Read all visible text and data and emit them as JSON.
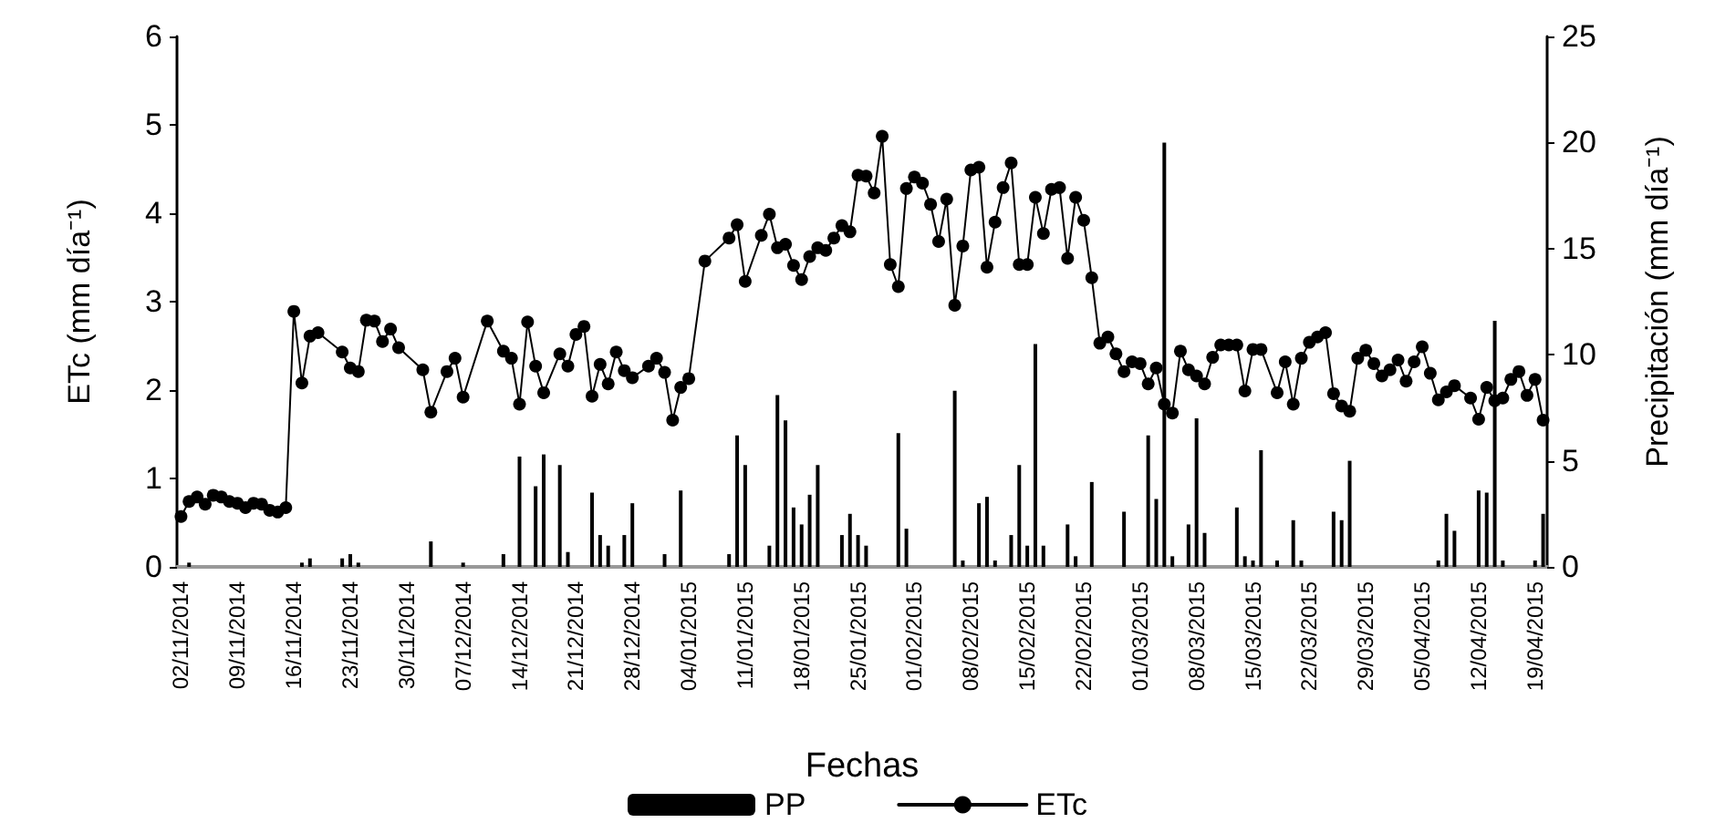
{
  "chart_data": {
    "type": "bar",
    "xlabel": "Fechas",
    "ylabel": "ETc (mm día⁻¹)",
    "y2label": "Precipitación (mm día⁻¹)",
    "categories": [
      "02/11/2014",
      null,
      null,
      null,
      null,
      null,
      null,
      "09/11/2014",
      null,
      null,
      null,
      null,
      null,
      null,
      "16/11/2014",
      null,
      null,
      null,
      null,
      null,
      null,
      "23/11/2014",
      null,
      null,
      null,
      null,
      null,
      null,
      "30/11/2014",
      null,
      null,
      null,
      null,
      null,
      null,
      "07/12/2014",
      null,
      null,
      null,
      null,
      null,
      null,
      "14/12/2014",
      null,
      null,
      null,
      null,
      null,
      null,
      "21/12/2014",
      null,
      null,
      null,
      null,
      null,
      null,
      "28/12/2014",
      null,
      null,
      null,
      null,
      null,
      null,
      "04/01/2015",
      null,
      null,
      null,
      null,
      null,
      null,
      "11/01/2015",
      null,
      null,
      null,
      null,
      null,
      null,
      "18/01/2015",
      null,
      null,
      null,
      null,
      null,
      null,
      "25/01/2015",
      null,
      null,
      null,
      null,
      null,
      null,
      "01/02/2015",
      null,
      null,
      null,
      null,
      null,
      null,
      "08/02/2015",
      null,
      null,
      null,
      null,
      null,
      null,
      "15/02/2015",
      null,
      null,
      null,
      null,
      null,
      null,
      "22/02/2015",
      null,
      null,
      null,
      null,
      null,
      null,
      "01/03/2015",
      null,
      null,
      null,
      null,
      null,
      null,
      "08/03/2015",
      null,
      null,
      null,
      null,
      null,
      null,
      "15/03/2015",
      null,
      null,
      null,
      null,
      null,
      null,
      "22/03/2015",
      null,
      null,
      null,
      null,
      null,
      null,
      "29/03/2015",
      null,
      null,
      null,
      null,
      null,
      null,
      "05/04/2015",
      null,
      null,
      null,
      null,
      null,
      null,
      "12/04/2015",
      null,
      null,
      null,
      null,
      null,
      null,
      "19/04/2015",
      null
    ],
    "series": [
      {
        "name": "PP",
        "axis": "y2",
        "color": "#000000",
        "values": [
          0,
          0.2,
          0,
          0,
          0,
          0,
          0,
          0,
          0,
          0,
          0,
          0,
          0,
          0,
          0,
          0.2,
          0.4,
          0,
          0,
          0,
          0.4,
          0.6,
          0.2,
          0,
          0,
          0,
          0,
          0,
          0,
          0,
          0,
          1.2,
          0,
          0,
          0,
          0.2,
          0,
          0,
          0,
          0,
          0.6,
          0,
          5.2,
          0,
          3.8,
          5.3,
          0,
          4.8,
          0.7,
          0,
          0,
          3.5,
          1.5,
          1.0,
          0,
          1.5,
          3.0,
          0,
          0,
          0,
          0.6,
          0,
          3.6,
          0,
          0,
          0,
          0,
          0,
          0.6,
          6.2,
          4.8,
          0,
          0,
          1.0,
          8.1,
          6.9,
          2.8,
          2.0,
          3.4,
          4.8,
          0,
          0,
          1.5,
          2.5,
          1.5,
          1.0,
          0,
          0,
          0,
          6.3,
          1.8,
          0,
          0,
          0,
          0,
          0,
          8.3,
          0.3,
          0,
          3.0,
          3.3,
          0.3,
          0,
          1.5,
          4.8,
          1.0,
          10.5,
          1.0,
          0,
          0,
          2.0,
          0.5,
          0,
          4.0,
          0,
          0,
          0,
          2.6,
          0,
          0,
          6.2,
          3.2,
          20.0,
          0.5,
          0,
          2.0,
          7.0,
          1.6,
          0,
          0,
          0,
          2.8,
          0.5,
          0.3,
          5.5,
          0,
          0.3,
          0,
          2.2,
          0.3,
          0,
          0,
          0,
          2.6,
          2.2,
          5.0,
          0,
          0,
          0,
          0,
          0,
          0,
          0,
          0,
          0,
          0,
          0.3,
          2.5,
          1.7,
          0,
          0,
          3.6,
          3.5,
          11.6,
          0.3,
          0,
          0,
          0,
          0.3,
          2.5
        ]
      },
      {
        "name": "ETc",
        "type": "line",
        "axis": "y",
        "color": "#000000",
        "values": [
          0.57,
          0.74,
          0.79,
          0.71,
          0.81,
          0.79,
          0.74,
          0.72,
          0.67,
          0.72,
          0.71,
          0.64,
          0.62,
          0.67,
          2.89,
          2.08,
          2.61,
          2.65,
          null,
          null,
          2.43,
          2.25,
          2.21,
          2.79,
          2.78,
          2.55,
          2.69,
          2.48,
          null,
          null,
          2.23,
          1.75,
          null,
          2.21,
          2.36,
          1.92,
          null,
          null,
          2.78,
          null,
          2.44,
          2.36,
          1.84,
          2.77,
          2.27,
          1.97,
          null,
          2.41,
          2.27,
          2.63,
          2.72,
          1.93,
          2.29,
          2.07,
          2.43,
          2.22,
          2.14,
          null,
          2.27,
          2.36,
          2.2,
          1.66,
          2.03,
          2.13,
          null,
          3.46,
          null,
          null,
          3.72,
          3.87,
          3.23,
          null,
          3.75,
          3.99,
          3.61,
          3.65,
          3.41,
          3.25,
          3.51,
          3.61,
          3.58,
          3.72,
          3.86,
          3.79,
          4.43,
          4.42,
          4.23,
          4.87,
          3.42,
          3.17,
          4.28,
          4.41,
          4.34,
          4.1,
          3.68,
          4.16,
          2.96,
          3.63,
          4.49,
          4.52,
          3.39,
          3.9,
          4.29,
          4.57,
          3.42,
          3.42,
          4.18,
          3.77,
          4.27,
          4.29,
          3.49,
          4.18,
          3.92,
          3.27,
          2.53,
          2.6,
          2.41,
          2.21,
          2.32,
          2.3,
          2.07,
          2.25,
          1.84,
          1.74,
          2.44,
          2.23,
          2.16,
          2.07,
          2.37,
          2.51,
          2.51,
          2.51,
          1.99,
          2.46,
          2.46,
          null,
          1.97,
          2.32,
          1.84,
          2.36,
          2.54,
          2.6,
          2.65,
          1.96,
          1.82,
          1.76,
          2.36,
          2.45,
          2.3,
          2.16,
          2.23,
          2.34,
          2.1,
          2.32,
          2.49,
          2.19,
          1.89,
          1.98,
          2.05,
          null,
          1.91,
          1.67,
          2.03,
          1.88,
          1.91,
          2.12,
          2.21,
          1.94,
          2.12,
          1.66
        ]
      }
    ],
    "ylim": [
      0,
      6
    ],
    "yticks": [
      0,
      1,
      2,
      3,
      4,
      5,
      6
    ],
    "y2lim": [
      0,
      25
    ],
    "y2ticks": [
      0,
      5,
      10,
      15,
      20,
      25
    ],
    "legend": "bottom",
    "marker": "circle",
    "line_style": "solid",
    "grid": false
  }
}
